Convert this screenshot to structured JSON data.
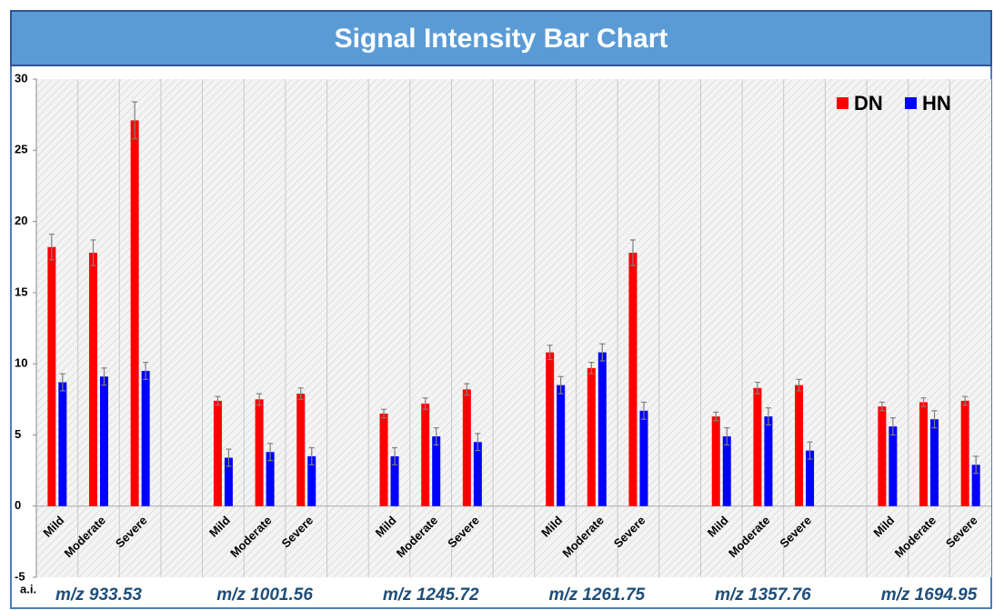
{
  "chart_data": {
    "type": "bar",
    "title": "Signal Intensity Bar Chart",
    "y_unit": "a.i.",
    "groups": [
      "m/z 933.53",
      "m/z 1001.56",
      "m/z 1245.72",
      "m/z 1261.75",
      "m/z 1357.76",
      "m/z 1694.95"
    ],
    "categories": [
      "Mild",
      "Moderate",
      "Severe",
      "Mild",
      "Moderate",
      "Severe",
      "Mild",
      "Moderate",
      "Severe",
      "Mild",
      "Moderate",
      "Severe",
      "Mild",
      "Moderate",
      "Severe",
      "Mild",
      "Moderate",
      "Severe"
    ],
    "series": [
      {
        "name": "DN",
        "color": "#ff0000",
        "values": [
          18.2,
          17.8,
          27.1,
          7.4,
          7.5,
          7.9,
          6.5,
          7.2,
          8.2,
          10.8,
          9.7,
          17.8,
          6.3,
          8.3,
          8.5,
          7.0,
          7.3,
          7.4
        ],
        "errors": [
          0.9,
          0.9,
          1.3,
          0.3,
          0.4,
          0.4,
          0.3,
          0.4,
          0.4,
          0.5,
          0.4,
          0.9,
          0.3,
          0.4,
          0.4,
          0.3,
          0.3,
          0.3
        ]
      },
      {
        "name": "HN",
        "color": "#0000ff",
        "values": [
          8.7,
          9.1,
          9.5,
          3.4,
          3.8,
          3.5,
          3.5,
          4.9,
          4.5,
          8.5,
          10.8,
          6.7,
          4.9,
          6.3,
          3.9,
          5.6,
          6.1,
          2.9
        ],
        "errors": [
          0.6,
          0.6,
          0.6,
          0.6,
          0.6,
          0.6,
          0.6,
          0.6,
          0.6,
          0.6,
          0.6,
          0.6,
          0.6,
          0.6,
          0.6,
          0.6,
          0.6,
          0.6
        ]
      }
    ],
    "ylim": [
      -5,
      30
    ],
    "yticks": [
      -5,
      0,
      5,
      10,
      15,
      20,
      25,
      30
    ],
    "grid": true,
    "legend": "upper right"
  }
}
